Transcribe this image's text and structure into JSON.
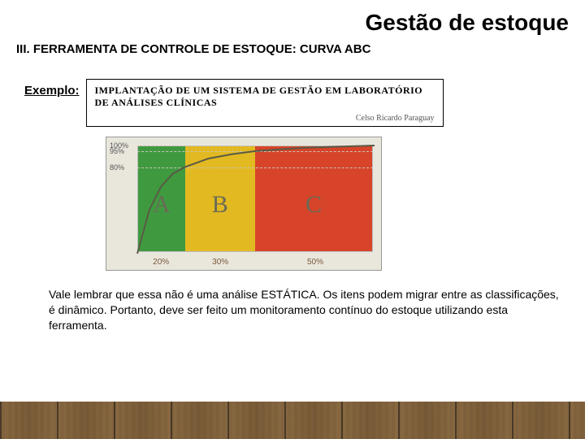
{
  "header": {
    "page_title": "Gestão de estoque",
    "section_title": "III. FERRAMENTA DE CONTROLE DE ESTOQUE: CURVA ABC"
  },
  "example": {
    "label": "Exemplo:",
    "box_title": "IMPLANTAÇÃO DE UM SISTEMA DE GESTÃO EM LABORATÓRIO DE ANÁLISES CLÍNICAS",
    "box_author": "Celso Ricardo Paraguay"
  },
  "chart": {
    "type": "area",
    "background_color": "#e9e6dc",
    "plot_bg": "#ece9df",
    "grid_color": "#c9c5b8",
    "ylim": [
      0,
      100
    ],
    "yticks": [
      {
        "value": 80,
        "label": "80%"
      },
      {
        "value": 95,
        "label": "95%"
      },
      {
        "value": 100,
        "label": "100%"
      }
    ],
    "zones": [
      {
        "name": "A",
        "start": 0,
        "end": 20,
        "color": "#3f9a3f",
        "xtick": "20%"
      },
      {
        "name": "B",
        "start": 20,
        "end": 50,
        "color": "#e2b921",
        "xtick": "30%"
      },
      {
        "name": "C",
        "start": 50,
        "end": 100,
        "color": "#d7442a",
        "xtick": "50%"
      }
    ],
    "curve_points": [
      {
        "x": 0,
        "y": 0
      },
      {
        "x": 5,
        "y": 40
      },
      {
        "x": 10,
        "y": 62
      },
      {
        "x": 15,
        "y": 74
      },
      {
        "x": 20,
        "y": 80
      },
      {
        "x": 30,
        "y": 88
      },
      {
        "x": 40,
        "y": 92
      },
      {
        "x": 50,
        "y": 95
      },
      {
        "x": 70,
        "y": 98
      },
      {
        "x": 100,
        "y": 100
      }
    ],
    "curve_color": "#5a5a45",
    "curve_width": 2
  },
  "body": {
    "text": "Vale lembrar que essa não é uma análise ESTÁTICA. Os itens podem migrar entre as classificações, é dinâmico. Portanto, deve ser feito um monitoramento contínuo do estoque utilizando esta ferramenta."
  }
}
